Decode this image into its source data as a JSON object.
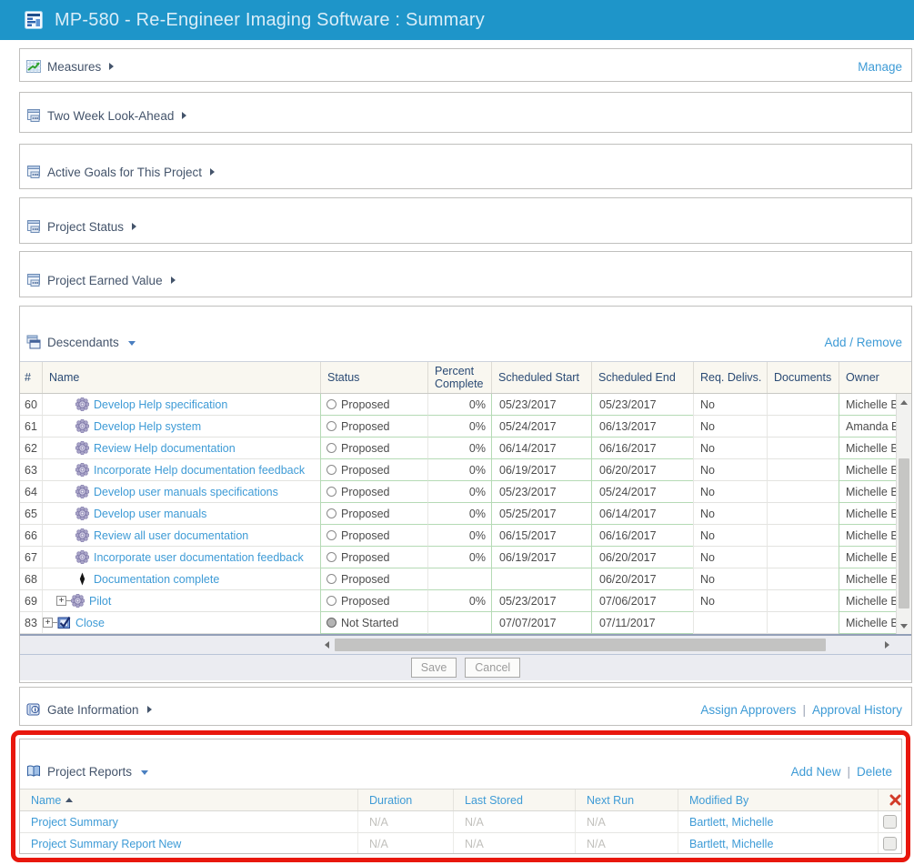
{
  "titlebar": {
    "title": "MP-580 - Re-Engineer Imaging Software : Summary"
  },
  "ui": {
    "pipe": "|"
  },
  "colors": {
    "titlebar_blue": "#1e95c9",
    "link_blue": "#3e9bd6",
    "section_text": "#44546b",
    "table_header_text": "#2a4a74",
    "editable_cell_green": "#b5dab5",
    "highlight_red": "#e8170d",
    "delete_x_red": "#d23b29"
  },
  "icons": {
    "app": "grid-chart-icon",
    "measures": "trend-up-chart-icon",
    "section": "report-window-icon",
    "descendants": "stacked-windows-icon",
    "gate": "info-book-icon",
    "reports": "open-book-icon",
    "task": "gear-icon",
    "milestone": "milestone-diamond-icon",
    "close_phase": "checked-document-icon",
    "delete": "red-x-icon",
    "sort": "ascending-arrow-icon"
  },
  "sections": {
    "measures": {
      "label": "Measures",
      "action": "Manage"
    },
    "lookahead": {
      "label": "Two Week Look-Ahead"
    },
    "goals": {
      "label": "Active Goals for This Project"
    },
    "status": {
      "label": "Project Status"
    },
    "earned": {
      "label": "Project Earned Value"
    }
  },
  "descendants": {
    "label": "Descendants",
    "action": "Add / Remove",
    "columns": [
      "#",
      "Name",
      "Status",
      "Percent Complete",
      "Scheduled Start",
      "Scheduled End",
      "Req. Delivs.",
      "Documents",
      "Owner"
    ],
    "rows": [
      {
        "num": "60",
        "icon": "task",
        "expander": false,
        "level": 3,
        "name": "Develop Help specification",
        "status": "Proposed",
        "status_icon": "open",
        "pct": "0%",
        "start": "05/23/2017",
        "end": "05/23/2017",
        "req": "No",
        "docs": "",
        "owner": "Michelle B"
      },
      {
        "num": "61",
        "icon": "task",
        "expander": false,
        "level": 3,
        "name": "Develop Help system",
        "status": "Proposed",
        "status_icon": "open",
        "pct": "0%",
        "start": "05/24/2017",
        "end": "06/13/2017",
        "req": "No",
        "docs": "",
        "owner": "Amanda B"
      },
      {
        "num": "62",
        "icon": "task",
        "expander": false,
        "level": 3,
        "name": "Review Help documentation",
        "status": "Proposed",
        "status_icon": "open",
        "pct": "0%",
        "start": "06/14/2017",
        "end": "06/16/2017",
        "req": "No",
        "docs": "",
        "owner": "Michelle B"
      },
      {
        "num": "63",
        "icon": "task",
        "expander": false,
        "level": 3,
        "name": "Incorporate Help documentation feedback",
        "status": "Proposed",
        "status_icon": "open",
        "pct": "0%",
        "start": "06/19/2017",
        "end": "06/20/2017",
        "req": "No",
        "docs": "",
        "owner": "Michelle B"
      },
      {
        "num": "64",
        "icon": "task",
        "expander": false,
        "level": 3,
        "name": "Develop user manuals specifications",
        "status": "Proposed",
        "status_icon": "open",
        "pct": "0%",
        "start": "05/23/2017",
        "end": "05/24/2017",
        "req": "No",
        "docs": "",
        "owner": "Michelle B"
      },
      {
        "num": "65",
        "icon": "task",
        "expander": false,
        "level": 3,
        "name": "Develop user manuals",
        "status": "Proposed",
        "status_icon": "open",
        "pct": "0%",
        "start": "05/25/2017",
        "end": "06/14/2017",
        "req": "No",
        "docs": "",
        "owner": "Michelle B"
      },
      {
        "num": "66",
        "icon": "task",
        "expander": false,
        "level": 3,
        "name": "Review all user documentation",
        "status": "Proposed",
        "status_icon": "open",
        "pct": "0%",
        "start": "06/15/2017",
        "end": "06/16/2017",
        "req": "No",
        "docs": "",
        "owner": "Michelle B"
      },
      {
        "num": "67",
        "icon": "task",
        "expander": false,
        "level": 3,
        "name": "Incorporate user documentation feedback",
        "status": "Proposed",
        "status_icon": "open",
        "pct": "0%",
        "start": "06/19/2017",
        "end": "06/20/2017",
        "req": "No",
        "docs": "",
        "owner": "Michelle B"
      },
      {
        "num": "68",
        "icon": "milestone",
        "expander": false,
        "level": 3,
        "name": "Documentation complete",
        "status": "Proposed",
        "status_icon": "open",
        "pct": "",
        "start": "",
        "end": "06/20/2017",
        "req": "No",
        "docs": "",
        "owner": "Michelle B"
      },
      {
        "num": "69",
        "icon": "task",
        "expander": true,
        "level": 2,
        "name": "Pilot",
        "status": "Proposed",
        "status_icon": "open",
        "pct": "0%",
        "start": "05/23/2017",
        "end": "07/06/2017",
        "req": "No",
        "docs": "",
        "owner": "Michelle B"
      },
      {
        "num": "83",
        "icon": "close",
        "expander": true,
        "level": 1,
        "name": "Close",
        "status": "Not Started",
        "status_icon": "filled",
        "pct": "",
        "start": "07/07/2017",
        "end": "07/11/2017",
        "req": "",
        "docs": "",
        "owner": "Michelle B"
      }
    ],
    "save_label": "Save",
    "cancel_label": "Cancel"
  },
  "gate": {
    "label": "Gate Information",
    "actions": [
      "Assign Approvers",
      "Approval History"
    ]
  },
  "reports": {
    "label": "Project Reports",
    "actions": [
      "Add New",
      "Delete"
    ],
    "columns": [
      "Name",
      "Duration",
      "Last Stored",
      "Next Run",
      "Modified By"
    ],
    "rows": [
      {
        "name": "Project Summary",
        "duration": "N/A",
        "last_stored": "N/A",
        "next_run": "N/A",
        "modified_by": "Bartlett, Michelle"
      },
      {
        "name": "Project Summary Report New",
        "duration": "N/A",
        "last_stored": "N/A",
        "next_run": "N/A",
        "modified_by": "Bartlett, Michelle"
      }
    ]
  }
}
